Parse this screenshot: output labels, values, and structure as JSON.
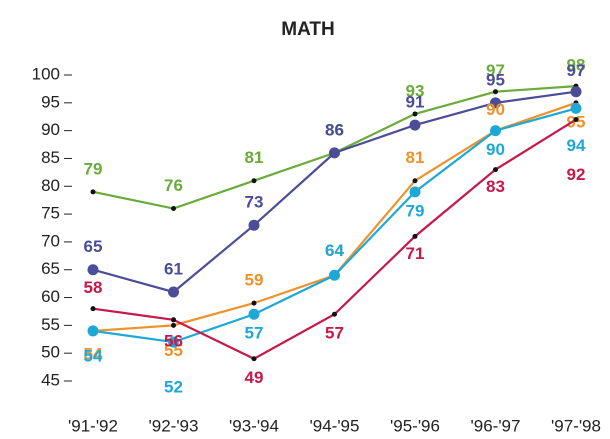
{
  "chart_data": {
    "type": "line",
    "title": "MATH",
    "categories": [
      "'91-'92",
      "'92-'93",
      "'93-'94",
      "'94-'95",
      "'95-'96",
      "'96-'97",
      "'97-'98"
    ],
    "series": [
      {
        "color": "#6aab3a",
        "marker": "small",
        "values": [
          79,
          76,
          81,
          86,
          93,
          97,
          98
        ]
      },
      {
        "color": "#4b4d96",
        "marker": "large",
        "values": [
          65,
          61,
          73,
          86,
          91,
          95,
          97
        ]
      },
      {
        "color": "#f0922b",
        "marker": "small",
        "values": [
          54,
          55,
          59,
          64,
          81,
          90,
          95
        ]
      },
      {
        "color": "#1ea8d8",
        "marker": "large",
        "values": [
          54,
          52,
          57,
          64,
          79,
          90,
          94
        ]
      },
      {
        "color": "#c8184a",
        "marker": "small",
        "values": [
          58,
          56,
          49,
          57,
          71,
          83,
          92
        ]
      }
    ],
    "ylim": [
      45,
      100
    ],
    "yticks": [
      45,
      50,
      55,
      60,
      65,
      70,
      75,
      80,
      85,
      90,
      95,
      100
    ]
  }
}
